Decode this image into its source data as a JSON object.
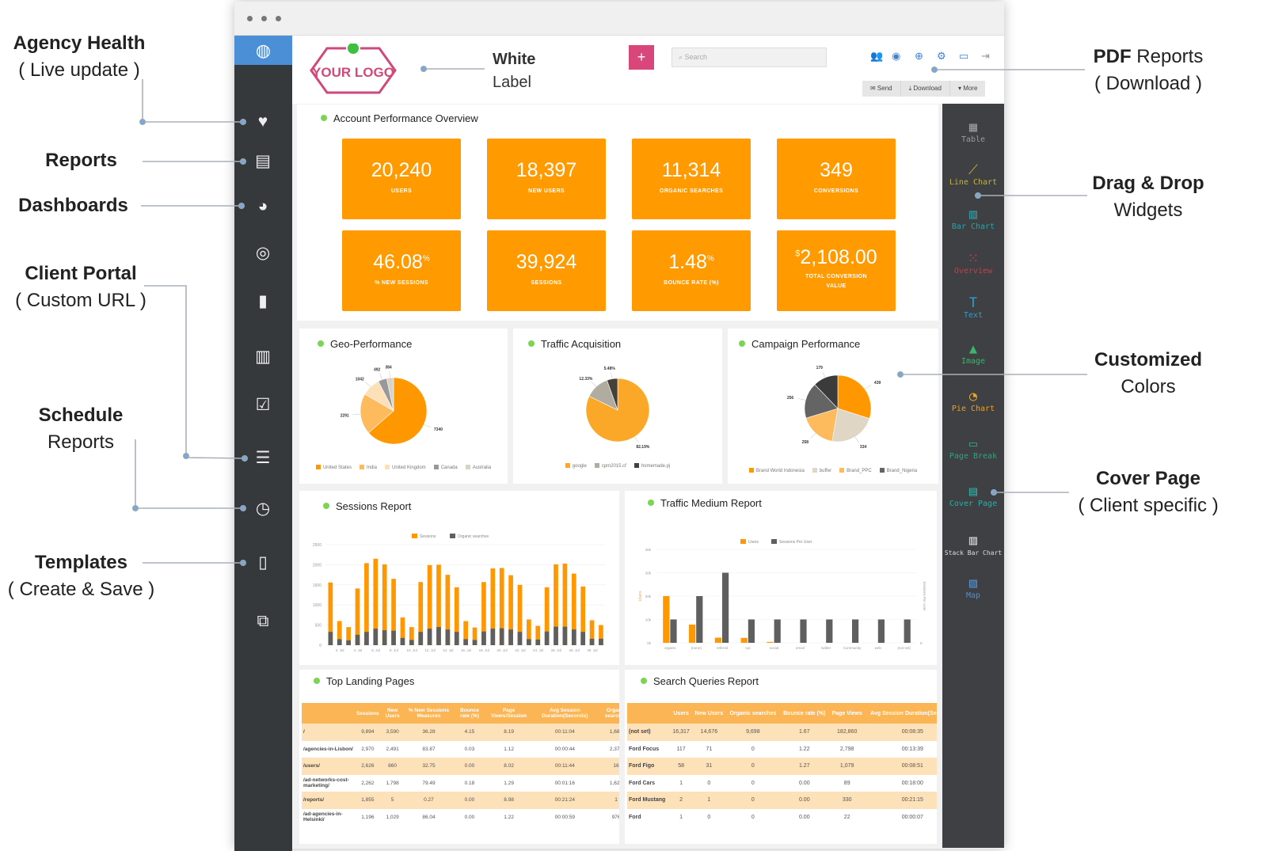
{
  "annotations": {
    "left": [
      {
        "title": "Agency Health",
        "sub": "( Live update )"
      },
      {
        "title": "Reports",
        "sub": ""
      },
      {
        "title": "Dashboards",
        "sub": ""
      },
      {
        "title": "Client Portal",
        "sub": "( Custom URL )"
      },
      {
        "title": "Schedule",
        "sub": "Reports"
      },
      {
        "title": "Templates",
        "sub": "( Create & Save )"
      }
    ],
    "right": [
      {
        "title": "PDF",
        "title_rest": " Reports",
        "sub": "( Download )"
      },
      {
        "title": "Drag & Drop",
        "sub": "Widgets"
      },
      {
        "title": "Customized",
        "sub": "Colors"
      },
      {
        "title": "Cover Page",
        "sub": "( Client specific )"
      }
    ],
    "white_label": {
      "title": "White",
      "sub": "Label"
    }
  },
  "header": {
    "logo_text": "YOUR LOGO",
    "add_label": "+",
    "search_placeholder": "Search",
    "icons": [
      "users-icon",
      "user-icon",
      "support-icon",
      "gear-icon",
      "card-icon",
      "logout-icon"
    ],
    "buttons": {
      "send": "✉ Send",
      "download": "⤓ Download",
      "more": "▾ More"
    }
  },
  "left_sidebar": [
    "heart-icon",
    "reports-icon",
    "pie-icon",
    "target-icon",
    "briefcase-icon",
    "notebook-icon",
    "checkbox-icon",
    "schedule-icon",
    "clock-icon",
    "template-icon",
    "layers-icon"
  ],
  "widgets": [
    {
      "label": "Table",
      "color": "#9b9b9b"
    },
    {
      "label": "Line Chart",
      "color": "#c9b431"
    },
    {
      "label": "Bar Chart",
      "color": "#2aa3a8"
    },
    {
      "label": "Overview",
      "color": "#c0424b"
    },
    {
      "label": "Text",
      "color": "#2b9fd1"
    },
    {
      "label": "Image",
      "color": "#3bb56b"
    },
    {
      "label": "Pie Chart",
      "color": "#f0a21c"
    },
    {
      "label": "Page Break",
      "color": "#2fa677"
    },
    {
      "label": "Cover Page",
      "color": "#2bb1a6"
    },
    {
      "label": "Stack Bar Chart",
      "color": "#dddddd"
    },
    {
      "label": "Map",
      "color": "#4f8fd1"
    }
  ],
  "overview": {
    "title": "Account Performance Overview",
    "kpis": [
      {
        "value": "20,240",
        "label": "USERS"
      },
      {
        "value": "18,397",
        "label": "NEW USERS"
      },
      {
        "value": "11,314",
        "label": "ORGANIC SEARCHES"
      },
      {
        "value": "349",
        "label": "CONVERSIONS"
      },
      {
        "value": "46.08",
        "suffix": "%",
        "label": "% NEW SESSIONS"
      },
      {
        "value": "39,924",
        "label": "SESSIONS"
      },
      {
        "value": "1.48",
        "suffix": "%",
        "label": "BOUNCE RATE (%)"
      },
      {
        "prefix": "$",
        "value": "2,108.00",
        "label": "TOTAL CONVERSION VALUE"
      }
    ]
  },
  "colors": {
    "accent": "#ff9a00",
    "dark": "#555555",
    "table_header": "#fbb555",
    "table_alt": "#fde1b8",
    "status_dot": "#7bd455",
    "add_button": "#d9467a"
  },
  "chart_data": [
    {
      "type": "pie",
      "title": "Geo-Performance",
      "labels": [
        "United States",
        "India",
        "United Kingdom",
        "Canada",
        "Australia"
      ],
      "values": [
        7340,
        2291,
        1042,
        492,
        384
      ],
      "data_labels": [
        "7340",
        "2291",
        "1042",
        "492",
        "384"
      ],
      "colors": [
        "#ff9800",
        "#fdbb5e",
        "#fde0b8",
        "#999999",
        "#d9d3c7"
      ],
      "legend": "bottom"
    },
    {
      "type": "pie",
      "title": "Traffic  Acquisition",
      "labels": [
        "google",
        "cpm2015.cf",
        "homemade.pj"
      ],
      "values": [
        82.19,
        12.33,
        5.48
      ],
      "data_labels": [
        "82.19%",
        "12.33%",
        "5.48%"
      ],
      "colors": [
        "#fba829",
        "#b0aca0",
        "#45403a"
      ],
      "legend": "bottom"
    },
    {
      "type": "pie",
      "title": "Campaign Performance",
      "labels": [
        "Brand World Indonesia",
        "buffer",
        "Brand_PPC",
        "Brand_Nigeria",
        ""
      ],
      "values": [
        439,
        334,
        258,
        256,
        179
      ],
      "data_labels": [
        "439",
        "334",
        "258",
        "256",
        "179"
      ],
      "colors": [
        "#ff9800",
        "#dfd6c6",
        "#fdbb5e",
        "#646464",
        "#3b3b3b"
      ],
      "legend": "bottom"
    },
    {
      "type": "bar",
      "title": "Sessions Report",
      "x": [
        "1 Jul",
        "2 Jul",
        "3 Jul",
        "4 Jul",
        "5 Jul",
        "6 Jul",
        "7 Jul",
        "8 Jul",
        "9 Jul",
        "10 Jul",
        "11 Jul",
        "12 Jul",
        "13 Jul",
        "14 Jul",
        "15 Jul",
        "16 Jul",
        "17 Jul",
        "18 Jul",
        "19 Jul",
        "20 Jul",
        "21 Jul",
        "22 Jul",
        "23 Jul",
        "24 Jul",
        "25 Jul",
        "26 Jul",
        "27 Jul",
        "28 Jul",
        "29 Jul",
        "30 Jul",
        "31 Jul"
      ],
      "xticks": [
        "2. Jul",
        "4. Jul",
        "6. Jul",
        "8. Jul",
        "10. Jul",
        "12. Jul",
        "14. Jul",
        "16. Jul",
        "18. Jul",
        "20. Jul",
        "22. Jul",
        "24. Jul",
        "26. Jul",
        "28. Jul",
        "30. Jul"
      ],
      "series": [
        {
          "name": "Sessions",
          "color": "#ff9800",
          "values": [
            1560,
            600,
            450,
            1410,
            2040,
            2150,
            2010,
            1650,
            690,
            450,
            1570,
            1990,
            2000,
            1750,
            1440,
            600,
            440,
            1570,
            1910,
            1920,
            1740,
            1500,
            640,
            480,
            1440,
            2010,
            2030,
            1780,
            1460,
            620,
            500
          ]
        },
        {
          "name": "Organic searches",
          "color": "#5f5f5f",
          "values": [
            330,
            150,
            120,
            260,
            330,
            410,
            370,
            360,
            180,
            130,
            330,
            410,
            450,
            390,
            330,
            150,
            130,
            340,
            410,
            420,
            390,
            330,
            150,
            140,
            340,
            460,
            460,
            390,
            330,
            160,
            160
          ]
        }
      ],
      "yticks": [
        "0",
        "500",
        "1000",
        "1500",
        "2000",
        "2500"
      ],
      "ylim": [
        0,
        2500
      ],
      "grid": true,
      "legend": "top"
    },
    {
      "type": "bar",
      "title": "Traffic Medium Report",
      "categories": [
        "organic",
        "(none)",
        "referral",
        "cpc",
        "social",
        "email",
        "twitter",
        "Community",
        "web",
        "(not set)"
      ],
      "series": [
        {
          "name": "Users",
          "color": "#ff9800",
          "axis": "left",
          "values": [
            20000,
            7800,
            2200,
            2100,
            400,
            0,
            0,
            0,
            0,
            0
          ]
        },
        {
          "name": "Sessions Per User",
          "color": "#5f5f5f",
          "axis": "right",
          "values": [
            1,
            2,
            3,
            1,
            1,
            1,
            1,
            1,
            1,
            1
          ]
        }
      ],
      "ylabel": "Users",
      "y2label": "Sessions Per User",
      "yticks": [
        "0k",
        "10k",
        "20k",
        "30k",
        "40k"
      ],
      "ylim": [
        0,
        40000
      ],
      "y2lim": [
        0,
        4
      ],
      "y2ticks": [
        "0"
      ],
      "grid": true,
      "legend": "top"
    }
  ],
  "landing_pages": {
    "title": "Top Landing Pages",
    "columns": [
      "",
      "Sessions",
      "New Users",
      "% New Sessions Measures",
      "Bounce rate (%)",
      "Page Views/Session",
      "Avg Session Duration(Seconds)",
      "Organic searches"
    ],
    "rows": [
      [
        "/",
        "9,894",
        "3,590",
        "36.28",
        "4.15",
        "8.19",
        "00:11:04",
        "1,686"
      ],
      [
        "/agencies-in-Lisbon/",
        "2,970",
        "2,491",
        "83.87",
        "0.03",
        "1.12",
        "00:00:44",
        "2,372"
      ],
      [
        "/users/",
        "2,626",
        "860",
        "32.75",
        "0.00",
        "8.02",
        "00:11:44",
        "16"
      ],
      [
        "/ad-networks-cost-marketing/",
        "2,262",
        "1,798",
        "79.49",
        "0.18",
        "1.29",
        "00:01:16",
        "1,626"
      ],
      [
        "/reports/",
        "1,855",
        "5",
        "0.27",
        "0.00",
        "8.98",
        "00:21:24",
        "1"
      ],
      [
        "/ad-agencies-in-Helsinki/",
        "1,196",
        "1,029",
        "86.04",
        "0.00",
        "1.22",
        "00:00:59",
        "976"
      ]
    ]
  },
  "search_queries": {
    "title": "Search Queries Report",
    "columns": [
      "",
      "Users",
      "New Users",
      "Organic searches",
      "Bounce rate (%)",
      "Page Views",
      "Avg Session Duration(Seconds)"
    ],
    "rows": [
      [
        "(not set)",
        "16,317",
        "14,676",
        "9,698",
        "1.67",
        "182,860",
        "00:08:35"
      ],
      [
        "Ford Focus",
        "117",
        "71",
        "0",
        "1.22",
        "2,798",
        "00:13:39"
      ],
      [
        "Ford Figo",
        "58",
        "31",
        "0",
        "1.27",
        "1,079",
        "00:08:51"
      ],
      [
        "Ford Cars",
        "1",
        "0",
        "0",
        "0.00",
        "89",
        "00:18:00"
      ],
      [
        "Ford Mustang",
        "2",
        "1",
        "0",
        "0.00",
        "330",
        "00:21:15"
      ],
      [
        "Ford",
        "1",
        "0",
        "0",
        "0.00",
        "22",
        "00:00:07"
      ]
    ]
  }
}
